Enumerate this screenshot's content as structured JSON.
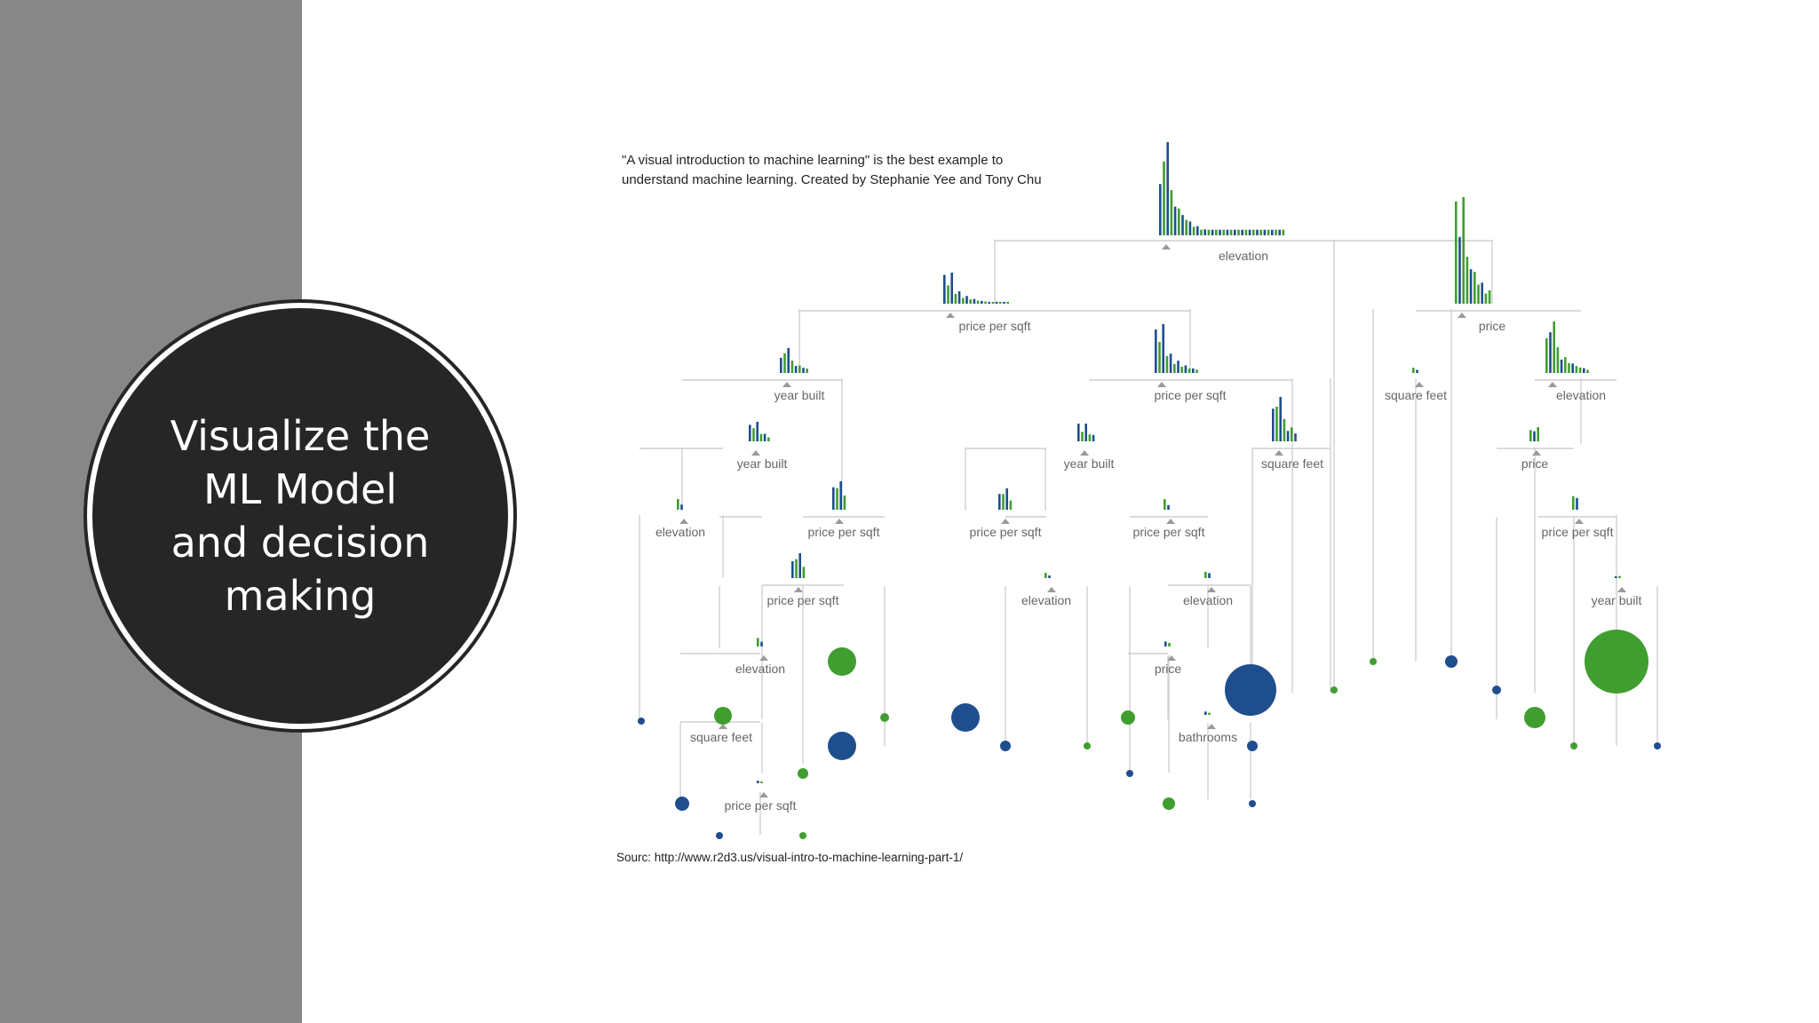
{
  "slide": {
    "title": "Visualize the\nML Model\nand decision\nmaking",
    "caption": "\"A visual introduction to machine learning\" is the best example to understand machine learning. Created by Stephanie Yee and Tony Chu",
    "source": "Sourc: http://www.r2d3.us/visual-intro-to-machine-learning-part-1/"
  },
  "colors": {
    "sidebar": "#878787",
    "circle": "#262626",
    "blue": "#1f4e8f",
    "green": "#3f9e2f"
  },
  "tree": {
    "labels": [
      "elevation",
      "price per sqft",
      "price",
      "year built",
      "price per sqft",
      "square feet",
      "elevation",
      "year built",
      "year built",
      "square feet",
      "price",
      "elevation",
      "price per sqft",
      "price per sqft",
      "price per sqft",
      "price per sqft",
      "price per sqft",
      "elevation",
      "elevation",
      "year built",
      "elevation",
      "price",
      "square feet",
      "bathrooms",
      "price per sqft"
    ]
  }
}
